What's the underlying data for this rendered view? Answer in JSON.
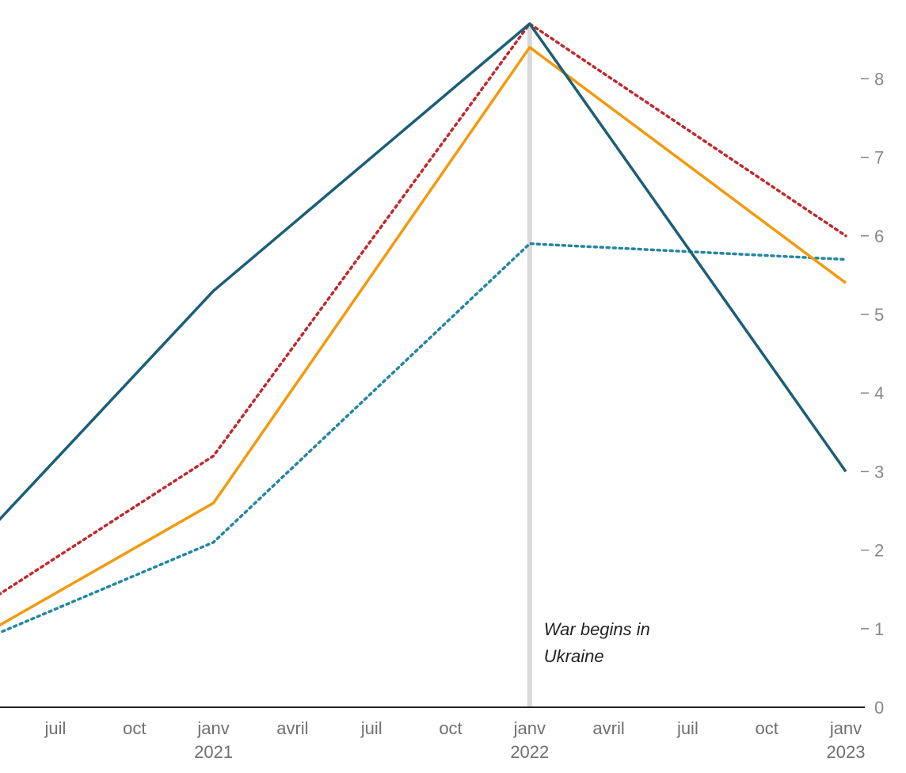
{
  "chart_data": {
    "type": "line",
    "x_unit": "month",
    "x_tick_labels": [
      {
        "x": "2020-07",
        "label": "juil",
        "year": ""
      },
      {
        "x": "2020-10",
        "label": "oct",
        "year": ""
      },
      {
        "x": "2021-01",
        "label": "janv",
        "year": "2021"
      },
      {
        "x": "2021-04",
        "label": "avril",
        "year": ""
      },
      {
        "x": "2021-07",
        "label": "juil",
        "year": ""
      },
      {
        "x": "2021-10",
        "label": "oct",
        "year": ""
      },
      {
        "x": "2022-01",
        "label": "janv",
        "year": "2022"
      },
      {
        "x": "2022-04",
        "label": "avril",
        "year": ""
      },
      {
        "x": "2022-07",
        "label": "juil",
        "year": ""
      },
      {
        "x": "2022-10",
        "label": "oct",
        "year": ""
      },
      {
        "x": "2023-01",
        "label": "janv",
        "year": "2023"
      }
    ],
    "xlim": [
      "2020-04",
      "2023-01"
    ],
    "ylim": [
      0,
      8.7
    ],
    "y_ticks": [
      0,
      1,
      2,
      3,
      4,
      5,
      6,
      7,
      8
    ],
    "y_axis_side": "right",
    "grid": false,
    "series": [
      {
        "color": "#1b5e78",
        "style": "solid",
        "points": [
          [
            "2020-01",
            1.0
          ],
          [
            "2021-01",
            5.3
          ],
          [
            "2022-01",
            8.7
          ],
          [
            "2023-01",
            3.0
          ]
        ]
      },
      {
        "color": "#f29a0e",
        "style": "solid",
        "points": [
          [
            "2020-01",
            0.3
          ],
          [
            "2021-01",
            2.6
          ],
          [
            "2022-01",
            8.4
          ],
          [
            "2023-01",
            5.4
          ]
        ]
      },
      {
        "color": "#c0282d",
        "style": "dotted",
        "points": [
          [
            "2020-01",
            0.6
          ],
          [
            "2021-01",
            3.2
          ],
          [
            "2022-01",
            8.7
          ],
          [
            "2023-01",
            6.0
          ]
        ]
      },
      {
        "color": "#2486a0",
        "style": "dotted",
        "points": [
          [
            "2020-01",
            0.4
          ],
          [
            "2021-01",
            2.1
          ],
          [
            "2022-01",
            5.9
          ],
          [
            "2023-01",
            5.7
          ]
        ]
      }
    ],
    "annotations": [
      {
        "x": "2022-01",
        "lines": [
          "War begins in",
          "Ukraine"
        ],
        "color": "#d9d9d9"
      }
    ]
  }
}
